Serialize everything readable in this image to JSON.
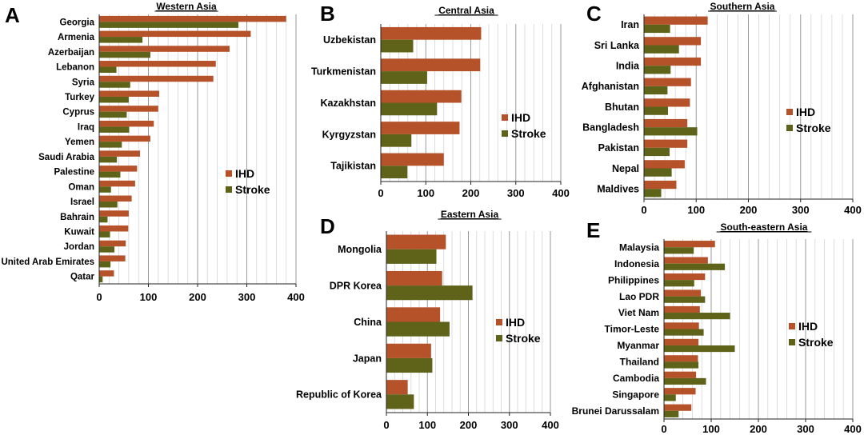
{
  "colors": {
    "ihd": "#B5522A",
    "stroke": "#5E6319",
    "major_grid": "#9a9a9a",
    "minor_grid": "#d4d4d4",
    "axis": "#222222"
  },
  "chart_data": [
    {
      "id": "A",
      "panel_letter": "A",
      "type": "bar",
      "orientation": "horizontal",
      "title": "Western Asia",
      "categories": [
        "Georgia",
        "Armenia",
        "Azerbaijan",
        "Lebanon",
        "Syria",
        "Turkey",
        "Cyprus",
        "Iraq",
        "Yemen",
        "Saudi Arabia",
        "Palestine",
        "Oman",
        "Israel",
        "Bahrain",
        "Kuwait",
        "Jordan",
        "United Arab Emirates",
        "Qatar"
      ],
      "series": [
        {
          "name": "IHD",
          "values": [
            380,
            308,
            265,
            237,
            232,
            122,
            120,
            111,
            104,
            83,
            77,
            73,
            66,
            60,
            59,
            54,
            53,
            30
          ]
        },
        {
          "name": "Stroke",
          "values": [
            283,
            88,
            104,
            35,
            63,
            60,
            56,
            61,
            46,
            36,
            43,
            24,
            37,
            17,
            22,
            31,
            23,
            7
          ]
        }
      ],
      "xlim": [
        0,
        400
      ],
      "xticks": [
        0,
        100,
        200,
        300,
        400
      ],
      "legend": [
        "IHD",
        "Stroke"
      ]
    },
    {
      "id": "B",
      "panel_letter": "B",
      "type": "bar",
      "orientation": "horizontal",
      "title": "Central Asia",
      "categories": [
        "Uzbekistan",
        "Turkmenistan",
        "Kazakhstan",
        "Kyrgyzstan",
        "Tajikistan"
      ],
      "series": [
        {
          "name": "IHD",
          "values": [
            223,
            221,
            179,
            175,
            140
          ]
        },
        {
          "name": "Stroke",
          "values": [
            72,
            103,
            125,
            68,
            59
          ]
        }
      ],
      "xlim": [
        0,
        400
      ],
      "xticks": [
        0,
        100,
        200,
        300,
        400
      ],
      "legend": [
        "IHD",
        "Stroke"
      ]
    },
    {
      "id": "C",
      "panel_letter": "C",
      "type": "bar",
      "orientation": "horizontal",
      "title": "Southern Asia",
      "categories": [
        "Iran",
        "Sri Lanka",
        "India",
        "Afghanistan",
        "Bhutan",
        "Bangladesh",
        "Pakistan",
        "Nepal",
        "Maldives"
      ],
      "series": [
        {
          "name": "IHD",
          "values": [
            122,
            109,
            109,
            90,
            88,
            83,
            83,
            78,
            62
          ]
        },
        {
          "name": "Stroke",
          "values": [
            50,
            67,
            51,
            45,
            46,
            102,
            49,
            53,
            33
          ]
        }
      ],
      "xlim": [
        0,
        400
      ],
      "xticks": [
        0,
        100,
        200,
        300,
        400
      ],
      "legend": [
        "IHD",
        "Stroke"
      ]
    },
    {
      "id": "D",
      "panel_letter": "D",
      "type": "bar",
      "orientation": "horizontal",
      "title": "Eastern Asia",
      "categories": [
        "Mongolia",
        "DPR Korea",
        "China",
        "Japan",
        "Republic of Korea"
      ],
      "series": [
        {
          "name": "IHD",
          "values": [
            145,
            136,
            131,
            109,
            52
          ]
        },
        {
          "name": "Stroke",
          "values": [
            122,
            210,
            154,
            112,
            67
          ]
        }
      ],
      "xlim": [
        0,
        400
      ],
      "xticks": [
        0,
        100,
        200,
        300,
        400
      ],
      "legend": [
        "IHD",
        "Stroke"
      ]
    },
    {
      "id": "E",
      "panel_letter": "E",
      "type": "bar",
      "orientation": "horizontal",
      "title": "South-eastern Asia",
      "categories": [
        "Malaysia",
        "Indonesia",
        "Philippines",
        "Lao PDR",
        "Viet Nam",
        "Timor-Leste",
        "Myanmar",
        "Thailand",
        "Cambodia",
        "Singapore",
        "Brunei Darussalam"
      ],
      "series": [
        {
          "name": "IHD",
          "values": [
            108,
            93,
            87,
            78,
            76,
            74,
            73,
            72,
            68,
            67,
            58
          ]
        },
        {
          "name": "Stroke",
          "values": [
            63,
            129,
            64,
            87,
            140,
            84,
            150,
            73,
            89,
            25,
            31
          ]
        }
      ],
      "xlim": [
        0,
        400
      ],
      "xticks": [
        0,
        100,
        200,
        300,
        400
      ],
      "legend": [
        "IHD",
        "Stroke"
      ]
    }
  ]
}
